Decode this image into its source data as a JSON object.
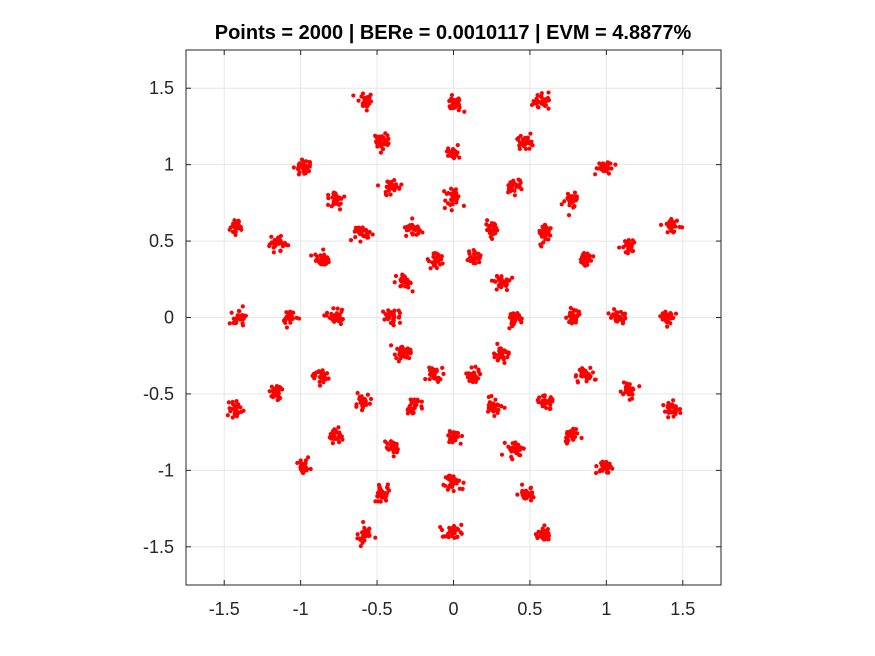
{
  "chart_data": {
    "type": "scatter",
    "title": "Points = 2000 | BERe = 0.0010117 | EVM = 4.8877%",
    "xlabel": "",
    "ylabel": "",
    "xlim": [
      -1.75,
      1.75
    ],
    "ylim": [
      -1.75,
      1.75
    ],
    "xticks": [
      -1.5,
      -1,
      -0.5,
      0,
      0.5,
      1,
      1.5
    ],
    "yticks": [
      -1.5,
      -1,
      -0.5,
      0,
      0.5,
      1,
      1.5
    ],
    "xtick_labels": [
      "-1.5",
      "-1",
      "-0.5",
      "0",
      "0.5",
      "1",
      "1.5"
    ],
    "ytick_labels": [
      "-1.5",
      "-1",
      "-0.5",
      "0",
      "0.5",
      "1",
      "1.5"
    ],
    "grid": true,
    "marker_color": "#ff0000",
    "series": [
      {
        "points_shown": 2000,
        "cluster_centers": [
          [
            0.4,
            0.0
          ],
          [
            0.324,
            0.235
          ],
          [
            0.124,
            0.38
          ],
          [
            -0.124,
            0.38
          ],
          [
            -0.324,
            0.235
          ],
          [
            -0.4,
            0.0
          ],
          [
            -0.324,
            -0.235
          ],
          [
            -0.124,
            -0.38
          ],
          [
            0.124,
            -0.38
          ],
          [
            0.324,
            -0.235
          ],
          [
            0.0,
            0.78
          ],
          [
            0.0,
            -0.78
          ],
          [
            0.78,
            0.0
          ],
          [
            -0.78,
            0.0
          ],
          [
            0.6,
            0.55
          ],
          [
            -0.6,
            0.55
          ],
          [
            0.6,
            -0.55
          ],
          [
            -0.6,
            -0.55
          ],
          [
            0.26,
            0.58
          ],
          [
            -0.26,
            0.58
          ],
          [
            0.26,
            -0.58
          ],
          [
            -0.26,
            -0.58
          ],
          [
            0.4,
            0.86
          ],
          [
            -0.4,
            0.86
          ],
          [
            0.4,
            -0.86
          ],
          [
            -0.4,
            -0.86
          ],
          [
            0.77,
            0.77
          ],
          [
            -0.77,
            0.77
          ],
          [
            0.77,
            -0.77
          ],
          [
            -0.77,
            -0.77
          ],
          [
            0.86,
            0.38
          ],
          [
            -0.86,
            0.38
          ],
          [
            0.86,
            -0.38
          ],
          [
            -0.86,
            -0.38
          ],
          [
            0.0,
            1.08
          ],
          [
            0.0,
            -1.08
          ],
          [
            1.08,
            0.0
          ],
          [
            -1.08,
            0.0
          ],
          [
            0.47,
            1.15
          ],
          [
            -0.47,
            1.15
          ],
          [
            0.47,
            -1.15
          ],
          [
            -0.47,
            -1.15
          ],
          [
            0.98,
            0.98
          ],
          [
            -0.98,
            0.98
          ],
          [
            0.98,
            -0.98
          ],
          [
            -0.98,
            -0.98
          ],
          [
            1.15,
            0.48
          ],
          [
            -1.15,
            0.48
          ],
          [
            1.15,
            -0.48
          ],
          [
            -1.15,
            -0.48
          ],
          [
            0.0,
            1.4
          ],
          [
            0.0,
            -1.4
          ],
          [
            1.4,
            0.0
          ],
          [
            -1.4,
            0.0
          ],
          [
            0.58,
            1.42
          ],
          [
            -0.58,
            1.42
          ],
          [
            0.58,
            -1.42
          ],
          [
            -0.58,
            -1.42
          ],
          [
            1.43,
            0.6
          ],
          [
            -1.43,
            0.6
          ],
          [
            1.43,
            -0.6
          ],
          [
            -1.43,
            -0.6
          ]
        ]
      }
    ]
  }
}
